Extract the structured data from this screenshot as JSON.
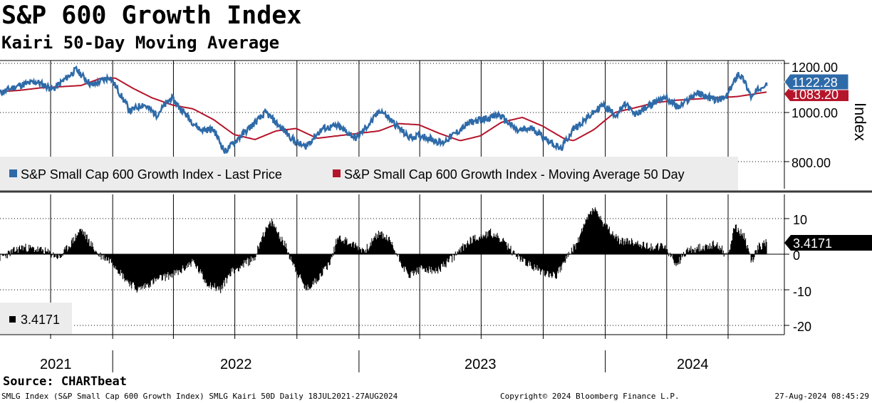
{
  "header": {
    "title": "S&P 600 Growth Index",
    "subtitle": "Kairi 50-Day Moving Average"
  },
  "footer": {
    "source": "Source: CHARTbeat",
    "info": "SMLG Index (S&P Small Cap 600 Growth Index) SMLG Kairi 50D  Daily 18JUL2021-27AUG2024",
    "copyright": "Copyright© 2024 Bloomberg Finance L.P.",
    "timestamp": "27-Aug-2024 08:45:29"
  },
  "colors": {
    "price": "#2e6aa8",
    "ma": "#b5152b",
    "kairi": "#000000",
    "grid": "#000000",
    "legend_bg": "#ececec"
  },
  "chart_data": [
    {
      "type": "line",
      "ylabel": "Index",
      "ylim": [
        650,
        1260
      ],
      "yticks": [
        800,
        1000,
        1200
      ],
      "ytick_labels": [
        "800.00",
        "1000.00",
        "1200.00"
      ],
      "grid": true,
      "legend_placement": "bottom-left",
      "x_start": "2021-07-18",
      "x_end": "2024-08-27",
      "series": [
        {
          "name": "S&P Small Cap 600 Growth Index - Last Price",
          "last_label": "1122.28",
          "points": [
            [
              "2021-07-18",
              1080
            ],
            [
              "2021-08-15",
              1110
            ],
            [
              "2021-09-10",
              1125
            ],
            [
              "2021-10-05",
              1095
            ],
            [
              "2021-11-08",
              1175
            ],
            [
              "2021-12-01",
              1110
            ],
            [
              "2021-12-28",
              1145
            ],
            [
              "2022-01-27",
              1005
            ],
            [
              "2022-02-15",
              1035
            ],
            [
              "2022-03-07",
              990
            ],
            [
              "2022-03-29",
              1060
            ],
            [
              "2022-04-28",
              965
            ],
            [
              "2022-05-11",
              930
            ],
            [
              "2022-05-31",
              930
            ],
            [
              "2022-06-16",
              840
            ],
            [
              "2022-07-08",
              900
            ],
            [
              "2022-08-16",
              1000
            ],
            [
              "2022-09-29",
              880
            ],
            [
              "2022-10-13",
              860
            ],
            [
              "2022-11-08",
              935
            ],
            [
              "2022-11-30",
              945
            ],
            [
              "2022-12-28",
              895
            ],
            [
              "2023-01-20",
              965
            ],
            [
              "2023-02-02",
              1010
            ],
            [
              "2023-03-15",
              900
            ],
            [
              "2023-04-06",
              905
            ],
            [
              "2023-05-04",
              875
            ],
            [
              "2023-06-15",
              960
            ],
            [
              "2023-07-28",
              990
            ],
            [
              "2023-08-24",
              925
            ],
            [
              "2023-09-15",
              935
            ],
            [
              "2023-10-27",
              850
            ],
            [
              "2023-11-14",
              930
            ],
            [
              "2023-12-28",
              1030
            ],
            [
              "2024-01-17",
              990
            ],
            [
              "2024-02-01",
              1035
            ],
            [
              "2024-02-13",
              990
            ],
            [
              "2024-03-28",
              1065
            ],
            [
              "2024-04-19",
              1020
            ],
            [
              "2024-05-15",
              1080
            ],
            [
              "2024-06-14",
              1050
            ],
            [
              "2024-06-28",
              1060
            ],
            [
              "2024-07-16",
              1160
            ],
            [
              "2024-07-25",
              1130
            ],
            [
              "2024-08-05",
              1060
            ],
            [
              "2024-08-20",
              1110
            ],
            [
              "2024-08-27",
              1122.28
            ]
          ]
        },
        {
          "name": "S&P Small Cap 600 Growth Index - Moving Average 50 Day",
          "last_label": "1083.20",
          "points": [
            [
              "2021-07-18",
              1085
            ],
            [
              "2021-08-15",
              1090
            ],
            [
              "2021-09-15",
              1100
            ],
            [
              "2021-10-15",
              1105
            ],
            [
              "2021-11-15",
              1110
            ],
            [
              "2021-12-15",
              1140
            ],
            [
              "2022-01-05",
              1140
            ],
            [
              "2022-01-30",
              1100
            ],
            [
              "2022-02-28",
              1060
            ],
            [
              "2022-03-31",
              1030
            ],
            [
              "2022-04-30",
              1015
            ],
            [
              "2022-05-31",
              970
            ],
            [
              "2022-06-30",
              910
            ],
            [
              "2022-07-31",
              890
            ],
            [
              "2022-08-31",
              925
            ],
            [
              "2022-09-30",
              935
            ],
            [
              "2022-10-31",
              895
            ],
            [
              "2022-11-30",
              905
            ],
            [
              "2022-12-31",
              915
            ],
            [
              "2023-01-31",
              925
            ],
            [
              "2023-02-28",
              955
            ],
            [
              "2023-03-31",
              950
            ],
            [
              "2023-04-30",
              915
            ],
            [
              "2023-05-31",
              885
            ],
            [
              "2023-06-30",
              905
            ],
            [
              "2023-07-31",
              960
            ],
            [
              "2023-08-31",
              980
            ],
            [
              "2023-09-30",
              945
            ],
            [
              "2023-10-31",
              895
            ],
            [
              "2023-11-15",
              885
            ],
            [
              "2023-12-15",
              930
            ],
            [
              "2024-01-15",
              1000
            ],
            [
              "2024-02-15",
              1020
            ],
            [
              "2024-03-15",
              1040
            ],
            [
              "2024-04-15",
              1050
            ],
            [
              "2024-05-15",
              1055
            ],
            [
              "2024-06-15",
              1060
            ],
            [
              "2024-07-15",
              1065
            ],
            [
              "2024-08-27",
              1083.2
            ]
          ]
        }
      ]
    },
    {
      "type": "bar",
      "ylim": [
        -23,
        17
      ],
      "yticks": [
        10,
        0,
        -10,
        -20
      ],
      "ytick_labels": [
        "10",
        "0",
        "-10",
        "-20"
      ],
      "grid": true,
      "legend_placement": "bottom-left",
      "series": [
        {
          "name": "3.4171",
          "last_label": "3.4171",
          "points": [
            [
              "2021-07-18",
              -1
            ],
            [
              "2021-08-20",
              2
            ],
            [
              "2021-09-20",
              1
            ],
            [
              "2021-10-15",
              -1
            ],
            [
              "2021-10-31",
              3
            ],
            [
              "2021-11-15",
              7
            ],
            [
              "2021-12-10",
              0
            ],
            [
              "2021-12-31",
              -2
            ],
            [
              "2022-01-20",
              -7
            ],
            [
              "2022-02-07",
              -10
            ],
            [
              "2022-03-10",
              -7
            ],
            [
              "2022-04-10",
              -5
            ],
            [
              "2022-04-30",
              -2
            ],
            [
              "2022-05-20",
              -8
            ],
            [
              "2022-06-10",
              -10
            ],
            [
              "2022-06-25",
              -5
            ],
            [
              "2022-07-31",
              -1
            ],
            [
              "2022-08-10",
              5
            ],
            [
              "2022-08-25",
              9
            ],
            [
              "2022-09-15",
              2
            ],
            [
              "2022-10-01",
              -5
            ],
            [
              "2022-10-15",
              -10
            ],
            [
              "2022-10-31",
              -7
            ],
            [
              "2022-11-20",
              -2
            ],
            [
              "2022-12-01",
              5
            ],
            [
              "2022-12-20",
              3
            ],
            [
              "2023-01-10",
              1
            ],
            [
              "2023-01-31",
              6
            ],
            [
              "2023-02-15",
              4
            ],
            [
              "2023-03-01",
              -1
            ],
            [
              "2023-03-15",
              -6
            ],
            [
              "2023-04-05",
              -4
            ],
            [
              "2023-04-25",
              -5
            ],
            [
              "2023-05-20",
              -1
            ],
            [
              "2023-06-15",
              4
            ],
            [
              "2023-07-15",
              6
            ],
            [
              "2023-07-31",
              4
            ],
            [
              "2023-08-20",
              0
            ],
            [
              "2023-09-10",
              -3
            ],
            [
              "2023-09-30",
              -5
            ],
            [
              "2023-10-20",
              -6
            ],
            [
              "2023-11-05",
              -1
            ],
            [
              "2023-11-20",
              3
            ],
            [
              "2023-12-05",
              10
            ],
            [
              "2023-12-15",
              13
            ],
            [
              "2023-12-31",
              8
            ],
            [
              "2024-01-20",
              4
            ],
            [
              "2024-02-20",
              3
            ],
            [
              "2024-03-10",
              2
            ],
            [
              "2024-03-30",
              2
            ],
            [
              "2024-04-15",
              -3
            ],
            [
              "2024-05-01",
              1
            ],
            [
              "2024-05-25",
              2
            ],
            [
              "2024-06-15",
              3
            ],
            [
              "2024-07-01",
              -1
            ],
            [
              "2024-07-10",
              8
            ],
            [
              "2024-07-25",
              5
            ],
            [
              "2024-08-05",
              -2
            ],
            [
              "2024-08-15",
              2
            ],
            [
              "2024-08-27",
              3.4171
            ]
          ]
        }
      ]
    }
  ],
  "x_axis": {
    "years": [
      "2021",
      "2022",
      "2023",
      "2024"
    ]
  }
}
